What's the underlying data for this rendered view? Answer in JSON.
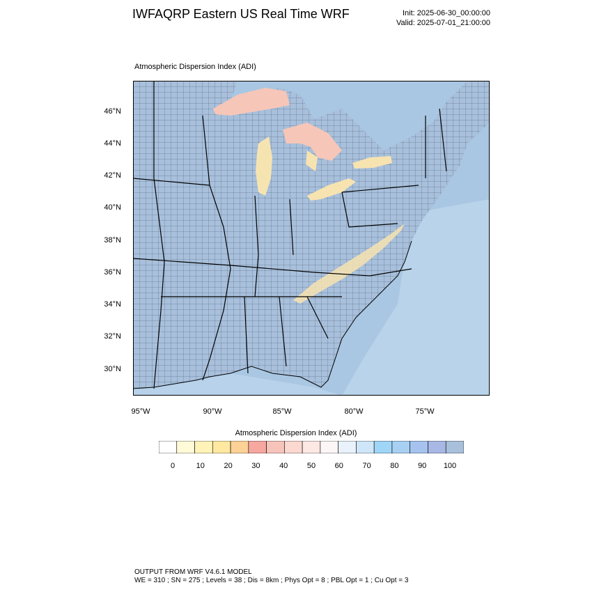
{
  "header": {
    "title": "IWFAQRP Eastern US Real Time WRF",
    "init": "Init: 2025-06-30_00:00:00",
    "valid": "Valid: 2025-07-01_21:00:00"
  },
  "panel": {
    "title": "Atmospheric Dispersion Index   (ADI)"
  },
  "map": {
    "lat_labels": [
      "46°N",
      "44°N",
      "42°N",
      "40°N",
      "38°N",
      "36°N",
      "34°N",
      "32°N",
      "30°N"
    ],
    "lon_labels": [
      "95°W",
      "90°W",
      "85°W",
      "80°W",
      "75°W"
    ],
    "colors": {
      "land": "#a8c0dc",
      "ocean": "#a9c7e2",
      "lake": "#f6c6b8",
      "warm": "#f7e3b0",
      "border": "#000000"
    }
  },
  "colorbar": {
    "title": "Atmospheric Dispersion Index  (ADI)",
    "ticks": [
      "0",
      "10",
      "20",
      "30",
      "40",
      "50",
      "60",
      "70",
      "80",
      "90",
      "100"
    ],
    "colors": [
      "#ffffff",
      "#fffbd8",
      "#fff3b8",
      "#ffe9a0",
      "#fdd296",
      "#f5a7a0",
      "#f7c4bc",
      "#fbd8d0",
      "#fde8e4",
      "#fdf6f6",
      "#e9f2fb",
      "#cfe6f8",
      "#9fd6f7",
      "#a7d0f2",
      "#a6c3ef",
      "#a8b8e4",
      "#a9c0dc"
    ]
  },
  "footer": {
    "line1": "OUTPUT FROM WRF V4.6.1 MODEL",
    "line2": "WE = 310 ; SN = 275 ; Levels = 38 ; Dis = 8km ; Phys Opt = 8 ; PBL Opt = 1 ; Cu Opt = 3"
  }
}
